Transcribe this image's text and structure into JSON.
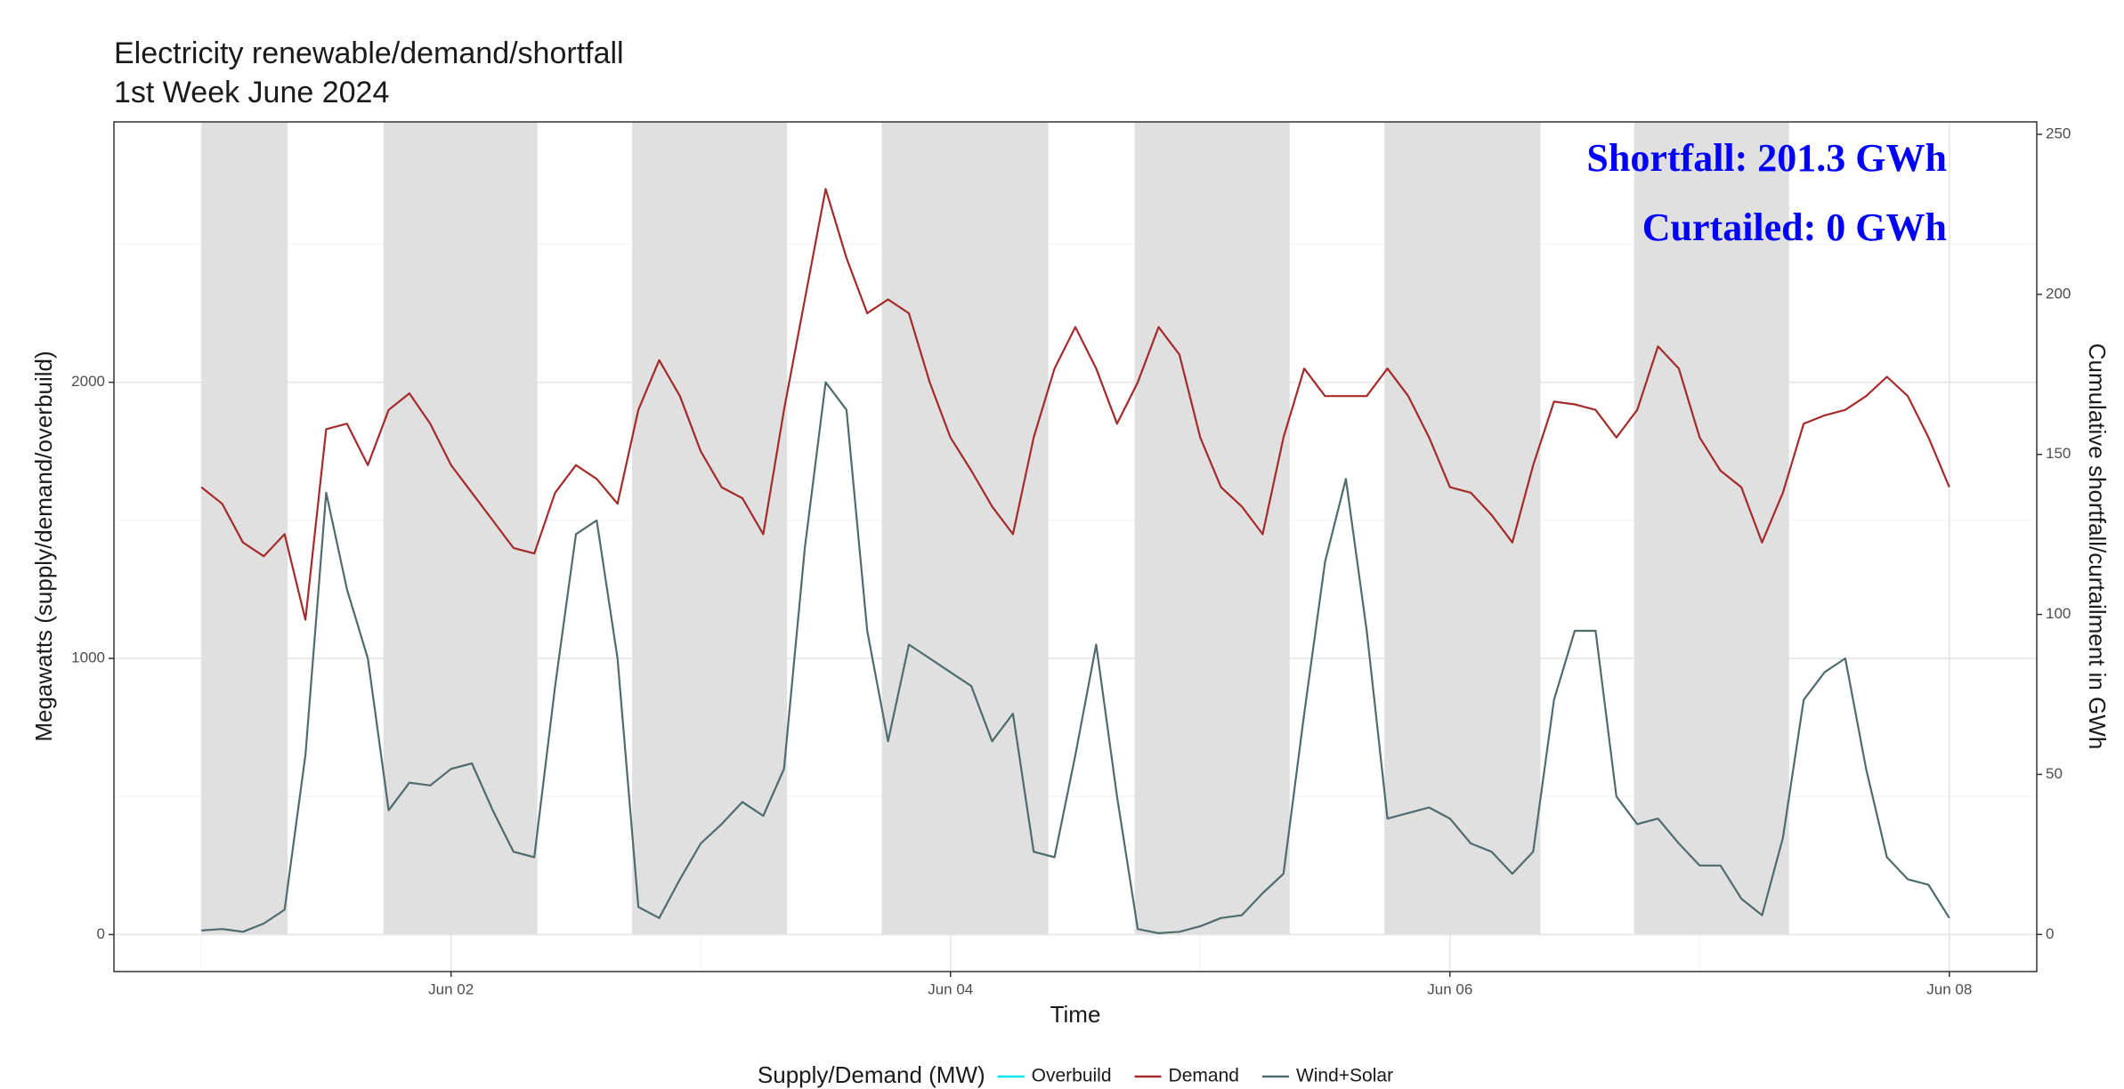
{
  "chart_data": {
    "type": "line",
    "title": "Electricity renewable/demand/shortfall",
    "subtitle": "1st Week June 2024",
    "x_label": "Time",
    "y_label": "Megawatts (supply/demand/overbuild)",
    "y2_label": "Cumulative shortfall/curtailment in GWh",
    "legend_title": "Supply/Demand (MW)",
    "legend_position": "bottom",
    "grid": true,
    "annotations": [
      "Shortfall: 201.3 GWh",
      "Curtailed: 0 GWh"
    ],
    "annotation_color": "#0000ff",
    "shade_color": "#dedede",
    "shaded_periods": [
      [
        0,
        8.3
      ],
      [
        17.5,
        32.3
      ],
      [
        41.4,
        56.3
      ],
      [
        65.4,
        81.4
      ],
      [
        89.7,
        104.6
      ],
      [
        113.7,
        128.7
      ],
      [
        137.7,
        152.6
      ]
    ],
    "xlim": [
      -8.4,
      176.4
    ],
    "xticks": [
      {
        "value": 24,
        "label": "Jun 02"
      },
      {
        "value": 72,
        "label": "Jun 04"
      },
      {
        "value": 120,
        "label": "Jun 06"
      },
      {
        "value": 168,
        "label": "Jun 08"
      }
    ],
    "x_minor_ticks": [
      0,
      48,
      96,
      144
    ],
    "ylim": [
      -134,
      2943
    ],
    "yticks": [
      0,
      1000,
      2000
    ],
    "y_minor_ticks": [
      500,
      1500,
      2500
    ],
    "y2lim": [
      -11.6,
      253.9
    ],
    "y2ticks": [
      0,
      50,
      100,
      150,
      200,
      250
    ],
    "x": [
      0,
      2,
      4,
      6,
      8,
      10,
      12,
      14,
      16,
      18,
      20,
      22,
      24,
      26,
      28,
      30,
      32,
      34,
      36,
      38,
      40,
      42,
      44,
      46,
      48,
      50,
      52,
      54,
      56,
      58,
      60,
      62,
      64,
      66,
      68,
      70,
      72,
      74,
      76,
      78,
      80,
      82,
      84,
      86,
      88,
      90,
      92,
      94,
      96,
      98,
      100,
      102,
      104,
      106,
      108,
      110,
      112,
      114,
      116,
      118,
      120,
      122,
      124,
      126,
      128,
      130,
      132,
      134,
      136,
      138,
      140,
      142,
      144,
      146,
      148,
      150,
      152,
      154,
      156,
      158,
      160,
      162,
      164,
      166,
      168
    ],
    "series": [
      {
        "name": "Overbuild",
        "color": "#00e5ee",
        "values": [
          null,
          null,
          null,
          null,
          null,
          null,
          null,
          null,
          null,
          null,
          null,
          null,
          null,
          null,
          null,
          null,
          null,
          null,
          null,
          null,
          null,
          null,
          null,
          null,
          null,
          null,
          null,
          null,
          null,
          null,
          null,
          null,
          null,
          null,
          null,
          null,
          null,
          null,
          null,
          null,
          null,
          null,
          null,
          null,
          null,
          null,
          null,
          null,
          null,
          null,
          null,
          null,
          null,
          null,
          null,
          null,
          null,
          null,
          null,
          null,
          null,
          null,
          null,
          null,
          null,
          null,
          null,
          null,
          null,
          null,
          null,
          null,
          null,
          null,
          null,
          null,
          null,
          null,
          null,
          null,
          null,
          null,
          null,
          null,
          null
        ]
      },
      {
        "name": "Demand",
        "color": "#a52a2a",
        "values": [
          1620,
          1560,
          1420,
          1370,
          1450,
          1140,
          1830,
          1850,
          1700,
          1900,
          1960,
          1850,
          1700,
          1600,
          1500,
          1400,
          1380,
          1600,
          1700,
          1650,
          1560,
          1900,
          2080,
          1950,
          1750,
          1620,
          1580,
          1450,
          1900,
          2300,
          2700,
          2450,
          2250,
          2300,
          2250,
          2000,
          1800,
          1680,
          1550,
          1450,
          1800,
          2050,
          2200,
          2050,
          1850,
          2000,
          2200,
          2100,
          1800,
          1620,
          1550,
          1450,
          1800,
          2050,
          1950,
          1950,
          1950,
          2050,
          1950,
          1800,
          1620,
          1600,
          1520,
          1420,
          1700,
          1930,
          1920,
          1900,
          1800,
          1900,
          2130,
          2050,
          1800,
          1680,
          1620,
          1420,
          1600,
          1850,
          1880,
          1900,
          1950,
          2020,
          1950,
          1800,
          1620
        ]
      },
      {
        "name": "Wind+Solar",
        "color": "#4f6b6b",
        "values": [
          15,
          20,
          10,
          40,
          90,
          650,
          1600,
          1250,
          1000,
          450,
          550,
          540,
          600,
          620,
          450,
          300,
          280,
          900,
          1450,
          1500,
          1000,
          100,
          60,
          200,
          330,
          400,
          480,
          430,
          600,
          1400,
          2000,
          1900,
          1100,
          700,
          1050,
          1000,
          950,
          900,
          700,
          800,
          300,
          280,
          650,
          1050,
          500,
          20,
          5,
          10,
          30,
          60,
          70,
          150,
          220,
          800,
          1350,
          1650,
          1100,
          420,
          440,
          460,
          420,
          330,
          300,
          220,
          300,
          850,
          1100,
          1100,
          500,
          400,
          420,
          330,
          250,
          250,
          130,
          70,
          350,
          850,
          950,
          1000,
          600,
          280,
          200,
          180,
          60
        ]
      }
    ]
  }
}
